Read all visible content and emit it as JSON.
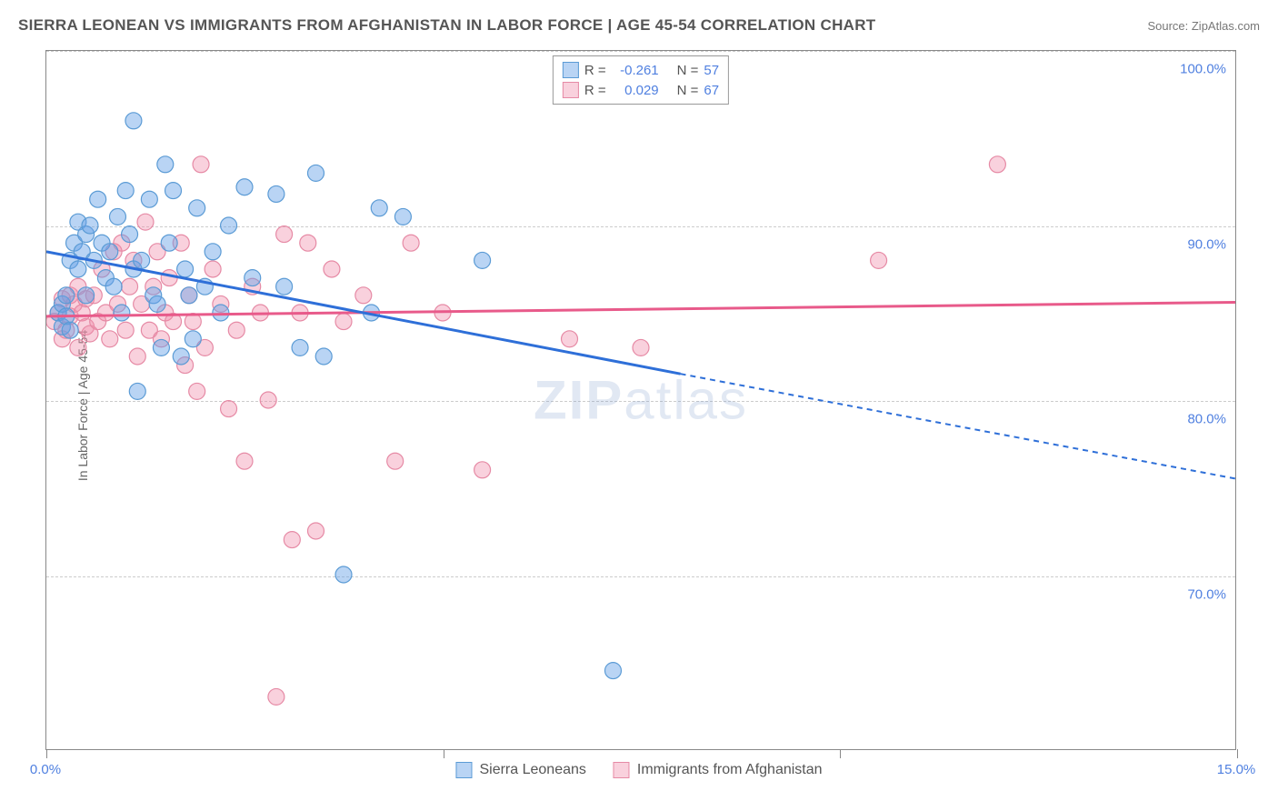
{
  "title": "SIERRA LEONEAN VS IMMIGRANTS FROM AFGHANISTAN IN LABOR FORCE | AGE 45-54 CORRELATION CHART",
  "source": "Source: ZipAtlas.com",
  "y_axis_label": "In Labor Force | Age 45-54",
  "watermark": "ZIPatlas",
  "colors": {
    "series1_fill": "rgba(100,160,230,0.45)",
    "series1_stroke": "#5b9bd5",
    "series1_line": "#2e6fd8",
    "series2_fill": "rgba(240,140,170,0.4)",
    "series2_stroke": "#e68aa5",
    "series2_line": "#e85a8a",
    "grid": "#cccccc",
    "border": "#888888",
    "title_color": "#555555",
    "tick_label_color": "#5080e0",
    "axis_label_color": "#666666",
    "source_color": "#777777"
  },
  "chart": {
    "type": "scatter",
    "xlim": [
      0,
      15
    ],
    "ylim": [
      60,
      100
    ],
    "y_grid": [
      70,
      80,
      90,
      100
    ],
    "y_tick_labels": [
      "70.0%",
      "80.0%",
      "90.0%",
      "100.0%"
    ],
    "x_ticks": [
      0,
      5,
      10,
      15
    ],
    "x_tick_labels": [
      "0.0%",
      "",
      "",
      "15.0%"
    ],
    "marker_radius": 9,
    "line_width": 3
  },
  "legend_top": [
    {
      "r_label": "R =",
      "r_value": "-0.261",
      "n_label": "N =",
      "n_value": "57",
      "swatch_fill": "rgba(100,160,230,0.45)",
      "swatch_stroke": "#5b9bd5"
    },
    {
      "r_label": "R =",
      "r_value": "0.029",
      "n_label": "N =",
      "n_value": "67",
      "swatch_fill": "rgba(240,140,170,0.4)",
      "swatch_stroke": "#e68aa5"
    }
  ],
  "legend_bottom": [
    {
      "label": "Sierra Leoneans",
      "swatch_fill": "rgba(100,160,230,0.45)",
      "swatch_stroke": "#5b9bd5"
    },
    {
      "label": "Immigrants from Afghanistan",
      "swatch_fill": "rgba(240,140,170,0.4)",
      "swatch_stroke": "#e68aa5"
    }
  ],
  "series1": {
    "name": "Sierra Leoneans",
    "reg_line": {
      "x1": 0,
      "y1": 88.5,
      "x2": 8,
      "y2": 81.5,
      "dash_from_x": 8,
      "dash_to_x": 15,
      "dash_to_y": 75.5
    },
    "points": [
      [
        0.15,
        85.0
      ],
      [
        0.2,
        84.2
      ],
      [
        0.2,
        85.5
      ],
      [
        0.25,
        86.0
      ],
      [
        0.25,
        84.8
      ],
      [
        0.3,
        88.0
      ],
      [
        0.3,
        84.0
      ],
      [
        0.35,
        89.0
      ],
      [
        0.4,
        90.2
      ],
      [
        0.4,
        87.5
      ],
      [
        0.45,
        88.5
      ],
      [
        0.5,
        89.5
      ],
      [
        0.5,
        86.0
      ],
      [
        0.55,
        90.0
      ],
      [
        0.6,
        88.0
      ],
      [
        0.65,
        91.5
      ],
      [
        0.7,
        89.0
      ],
      [
        0.75,
        87.0
      ],
      [
        0.8,
        88.5
      ],
      [
        0.85,
        86.5
      ],
      [
        0.9,
        90.5
      ],
      [
        0.95,
        85.0
      ],
      [
        1.0,
        92.0
      ],
      [
        1.05,
        89.5
      ],
      [
        1.1,
        87.5
      ],
      [
        1.1,
        96.0
      ],
      [
        1.15,
        80.5
      ],
      [
        1.2,
        88.0
      ],
      [
        1.3,
        91.5
      ],
      [
        1.35,
        86.0
      ],
      [
        1.4,
        85.5
      ],
      [
        1.45,
        83.0
      ],
      [
        1.5,
        93.5
      ],
      [
        1.55,
        89.0
      ],
      [
        1.6,
        92.0
      ],
      [
        1.7,
        82.5
      ],
      [
        1.75,
        87.5
      ],
      [
        1.8,
        86.0
      ],
      [
        1.85,
        83.5
      ],
      [
        1.9,
        91.0
      ],
      [
        2.0,
        86.5
      ],
      [
        2.1,
        88.5
      ],
      [
        2.2,
        85.0
      ],
      [
        2.3,
        90.0
      ],
      [
        2.5,
        92.2
      ],
      [
        2.6,
        87.0
      ],
      [
        2.9,
        91.8
      ],
      [
        3.0,
        86.5
      ],
      [
        3.2,
        83.0
      ],
      [
        3.4,
        93.0
      ],
      [
        3.5,
        82.5
      ],
      [
        3.75,
        70.0
      ],
      [
        4.1,
        85.0
      ],
      [
        4.2,
        91.0
      ],
      [
        4.5,
        90.5
      ],
      [
        5.5,
        88.0
      ],
      [
        7.15,
        64.5
      ]
    ]
  },
  "series2": {
    "name": "Immigants from Afghanistan",
    "reg_line": {
      "x1": 0,
      "y1": 84.8,
      "x2": 15,
      "y2": 85.6
    },
    "points": [
      [
        0.1,
        84.5
      ],
      [
        0.15,
        85.0
      ],
      [
        0.2,
        83.5
      ],
      [
        0.2,
        85.8
      ],
      [
        0.25,
        84.0
      ],
      [
        0.3,
        86.0
      ],
      [
        0.3,
        84.8
      ],
      [
        0.35,
        85.5
      ],
      [
        0.4,
        83.0
      ],
      [
        0.4,
        86.5
      ],
      [
        0.45,
        85.0
      ],
      [
        0.5,
        84.2
      ],
      [
        0.5,
        85.8
      ],
      [
        0.55,
        83.8
      ],
      [
        0.6,
        86.0
      ],
      [
        0.65,
        84.5
      ],
      [
        0.7,
        87.5
      ],
      [
        0.75,
        85.0
      ],
      [
        0.8,
        83.5
      ],
      [
        0.85,
        88.5
      ],
      [
        0.9,
        85.5
      ],
      [
        0.95,
        89.0
      ],
      [
        1.0,
        84.0
      ],
      [
        1.05,
        86.5
      ],
      [
        1.1,
        88.0
      ],
      [
        1.15,
        82.5
      ],
      [
        1.2,
        85.5
      ],
      [
        1.25,
        90.2
      ],
      [
        1.3,
        84.0
      ],
      [
        1.35,
        86.5
      ],
      [
        1.4,
        88.5
      ],
      [
        1.45,
        83.5
      ],
      [
        1.5,
        85.0
      ],
      [
        1.55,
        87.0
      ],
      [
        1.6,
        84.5
      ],
      [
        1.7,
        89.0
      ],
      [
        1.75,
        82.0
      ],
      [
        1.8,
        86.0
      ],
      [
        1.85,
        84.5
      ],
      [
        1.9,
        80.5
      ],
      [
        1.95,
        93.5
      ],
      [
        2.0,
        83.0
      ],
      [
        2.1,
        87.5
      ],
      [
        2.2,
        85.5
      ],
      [
        2.3,
        79.5
      ],
      [
        2.4,
        84.0
      ],
      [
        2.5,
        76.5
      ],
      [
        2.6,
        86.5
      ],
      [
        2.7,
        85.0
      ],
      [
        2.8,
        80.0
      ],
      [
        2.9,
        63.0
      ],
      [
        3.0,
        89.5
      ],
      [
        3.1,
        72.0
      ],
      [
        3.2,
        85.0
      ],
      [
        3.3,
        89.0
      ],
      [
        3.4,
        72.5
      ],
      [
        3.6,
        87.5
      ],
      [
        3.75,
        84.5
      ],
      [
        4.0,
        86.0
      ],
      [
        4.4,
        76.5
      ],
      [
        4.6,
        89.0
      ],
      [
        5.0,
        85.0
      ],
      [
        5.5,
        76.0
      ],
      [
        6.6,
        83.5
      ],
      [
        7.5,
        83.0
      ],
      [
        10.5,
        88.0
      ],
      [
        12.0,
        93.5
      ]
    ]
  }
}
